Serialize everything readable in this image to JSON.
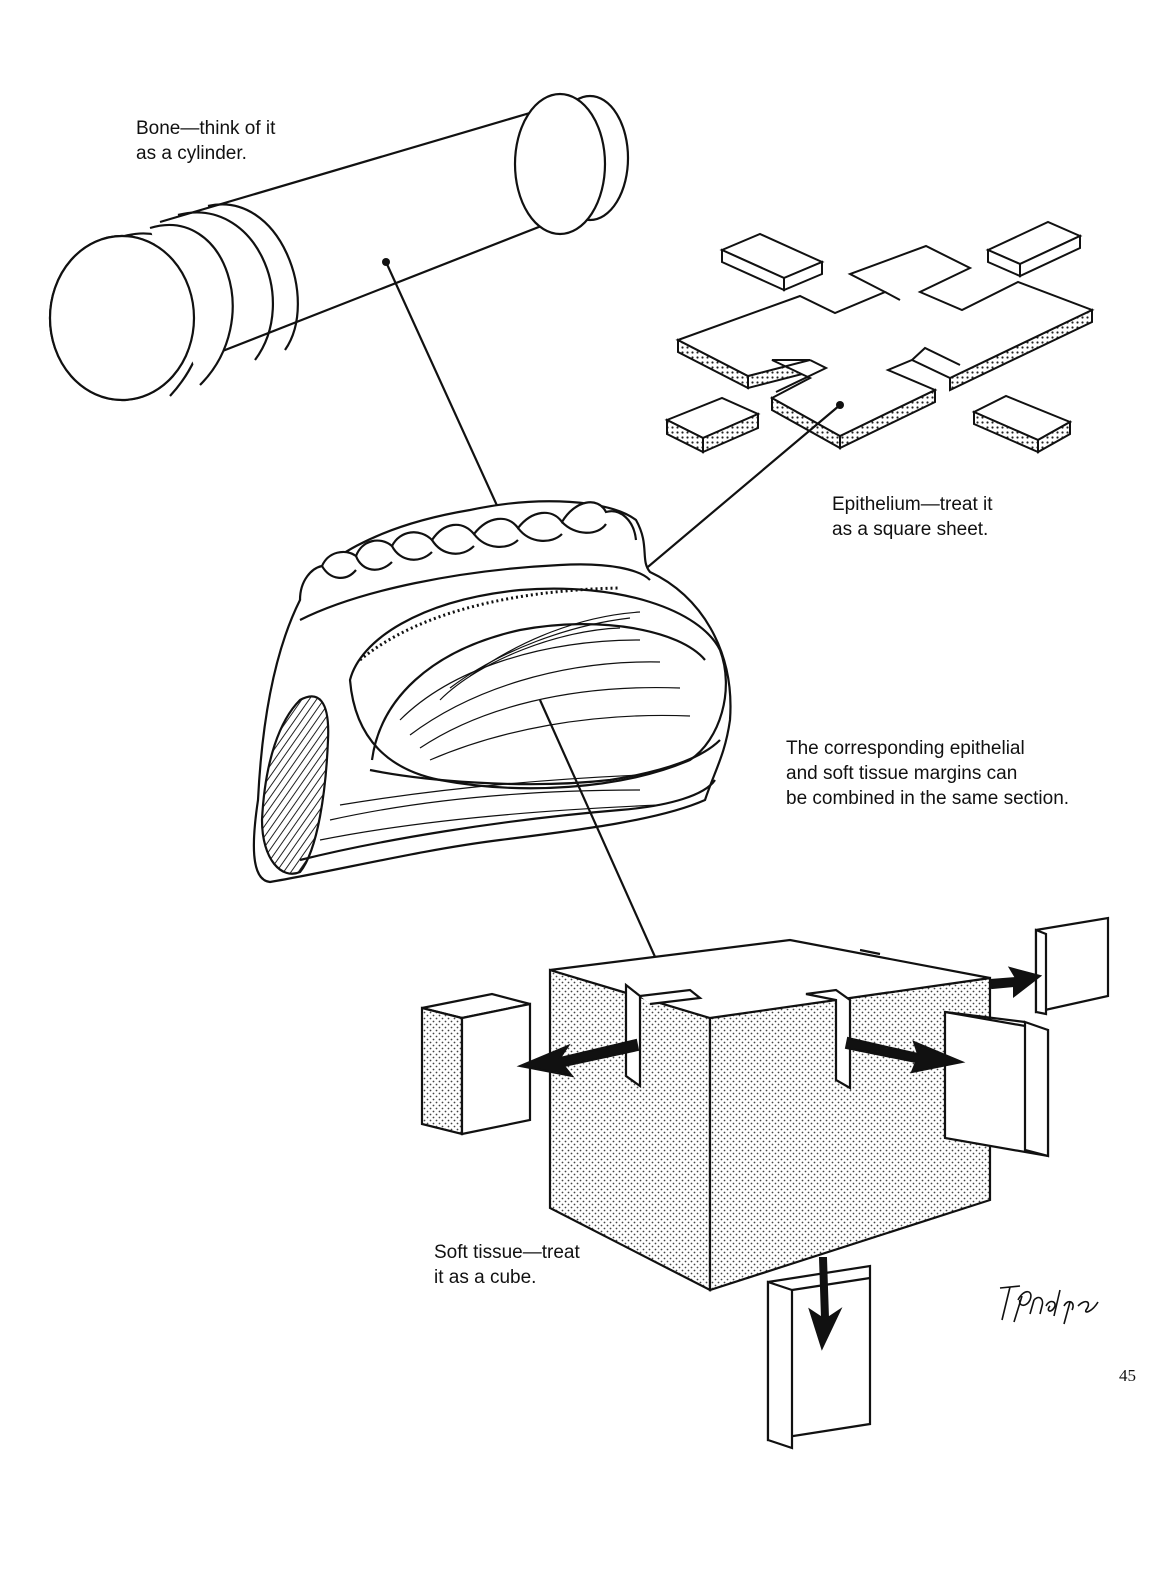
{
  "labels": {
    "bone": [
      "Bone—think of it",
      "as a cylinder."
    ],
    "epithelium": [
      "Epithelium—treat it",
      "as a square sheet."
    ],
    "combined": [
      "The corresponding epithelial",
      "and soft tissue margins can",
      "be combined in the same section."
    ],
    "soft_tissue": [
      "Soft tissue—treat",
      "it as a cube."
    ]
  },
  "signature": "T Phelps",
  "page_number": "45",
  "colors": {
    "ink": "#111111",
    "paper": "#ffffff",
    "stipple": "#555555"
  }
}
